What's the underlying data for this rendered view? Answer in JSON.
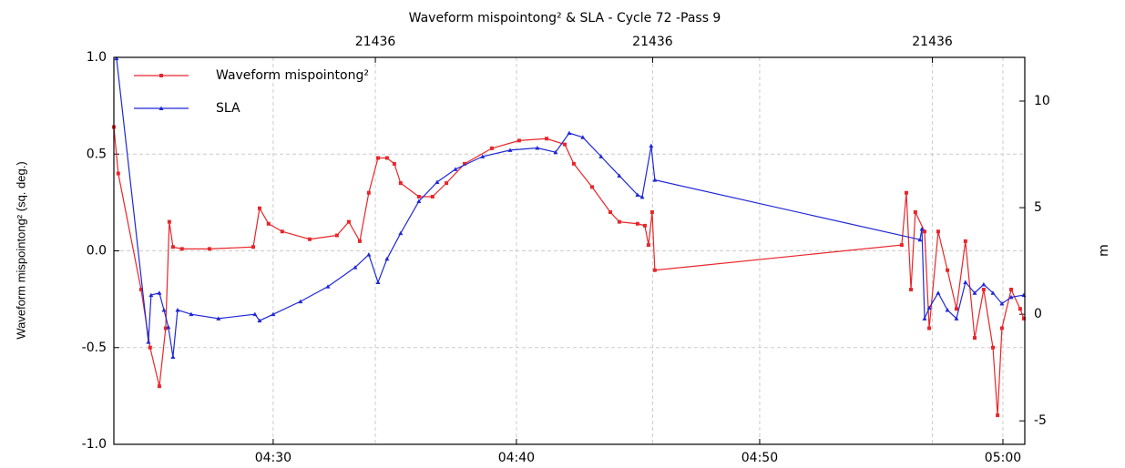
{
  "chart_data": {
    "type": "line",
    "title": "Waveform mispointong² & SLA - Cycle 72 -Pass 9",
    "y_label": "Waveform mispointong² (sq. deg.)",
    "y2_label": "m",
    "xlim": [
      263.45,
      300.9
    ],
    "xticks": [
      {
        "value": 270,
        "label": "04:30"
      },
      {
        "value": 280,
        "label": "04:40"
      },
      {
        "value": 290,
        "label": "04:50"
      },
      {
        "value": 300,
        "label": "05:00"
      }
    ],
    "x2ticks": [
      {
        "value": 274.2,
        "label": "21436"
      },
      {
        "value": 285.6,
        "label": "21436"
      },
      {
        "value": 297.1,
        "label": "21436"
      }
    ],
    "ylim": [
      -1.0,
      1.0
    ],
    "yticks": [
      {
        "value": -1.0,
        "label": "-1.0"
      },
      -0.5,
      {
        "value": 0.0,
        "label": "0.0"
      },
      0.5,
      {
        "value": 1.0,
        "label": "1.0"
      }
    ],
    "y2lim": [
      -6.1,
      12.05
    ],
    "y2ticks": [
      -5,
      0,
      5,
      10
    ],
    "grid": true,
    "legend": "upper left",
    "series": [
      {
        "name": "Waveform mispointong²",
        "color": "#e8262a",
        "axis": "y",
        "marker": "square",
        "x": [
          263.45,
          263.63,
          264.57,
          264.94,
          265.32,
          265.58,
          265.73,
          265.88,
          266.25,
          267.38,
          269.18,
          269.44,
          269.81,
          270.37,
          271.5,
          272.62,
          273.11,
          273.56,
          273.93,
          274.31,
          274.68,
          274.98,
          275.24,
          275.99,
          276.55,
          277.12,
          277.87,
          278.99,
          280.11,
          281.24,
          281.99,
          282.36,
          283.11,
          283.86,
          284.23,
          284.98,
          285.28,
          285.43,
          285.58,
          285.69,
          295.84,
          296.03,
          296.22,
          296.4,
          296.78,
          296.97,
          297.34,
          297.72,
          298.09,
          298.46,
          298.84,
          299.21,
          299.59,
          299.78,
          299.96,
          300.34,
          300.71,
          300.86
        ],
        "values": [
          0.64,
          0.4,
          -0.2,
          -0.5,
          -0.7,
          -0.4,
          0.15,
          0.02,
          0.01,
          0.01,
          0.02,
          0.22,
          0.14,
          0.1,
          0.06,
          0.08,
          0.15,
          0.05,
          0.3,
          0.48,
          0.48,
          0.45,
          0.35,
          0.28,
          0.28,
          0.35,
          0.45,
          0.53,
          0.57,
          0.58,
          0.55,
          0.45,
          0.33,
          0.2,
          0.15,
          0.14,
          0.13,
          0.03,
          0.2,
          -0.1,
          0.03,
          0.3,
          -0.2,
          0.2,
          0.1,
          -0.4,
          0.1,
          -0.1,
          -0.3,
          0.05,
          -0.45,
          -0.2,
          -0.5,
          -0.85,
          -0.4,
          -0.2,
          -0.3,
          -0.35
        ]
      },
      {
        "name": "SLA",
        "color": "#1e28d6",
        "axis": "y2",
        "marker": "triangle",
        "x": [
          263.56,
          264.87,
          264.98,
          265.32,
          265.51,
          265.69,
          265.88,
          266.07,
          266.63,
          267.75,
          269.25,
          269.44,
          270,
          271.12,
          272.25,
          273.37,
          273.93,
          274.31,
          274.68,
          275.24,
          275.99,
          276.74,
          277.49,
          278.61,
          279.74,
          280.86,
          281.61,
          282.17,
          282.73,
          283.48,
          284.23,
          284.98,
          285.17,
          285.54,
          285.69,
          296.59,
          296.67,
          296.78,
          296.97,
          297.34,
          297.72,
          298.09,
          298.46,
          298.84,
          299.21,
          299.59,
          299.96,
          300.34,
          300.86
        ],
        "values": [
          12,
          -1.3,
          0.9,
          1.0,
          0.2,
          -0.6,
          -2,
          0.2,
          0.0,
          -0.2,
          0.0,
          -0.3,
          0.0,
          0.6,
          1.3,
          2.2,
          2.8,
          1.5,
          2.6,
          3.8,
          5.3,
          6.2,
          6.8,
          7.4,
          7.7,
          7.8,
          7.6,
          8.5,
          8.3,
          7.4,
          6.5,
          5.6,
          5.5,
          7.9,
          6.3,
          3.5,
          4,
          -0.2,
          0.3,
          1.0,
          0.2,
          -0.2,
          1.5,
          1.0,
          1.4,
          1.0,
          0.5,
          0.8,
          0.9
        ]
      }
    ]
  }
}
